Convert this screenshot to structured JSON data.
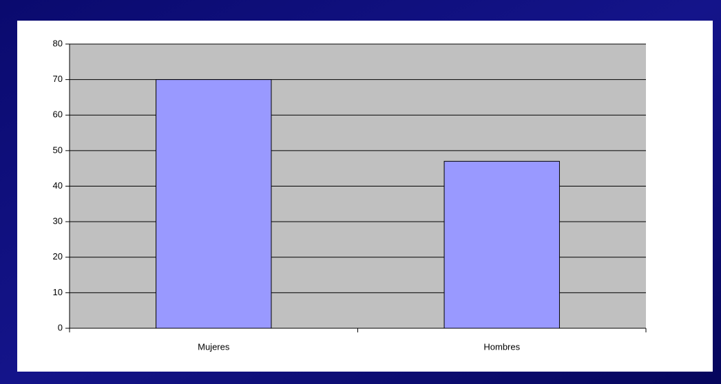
{
  "chart_data": {
    "type": "bar",
    "categories": [
      "Mujeres",
      "Hombres"
    ],
    "values": [
      70,
      47
    ],
    "color": "#9999ff",
    "ylim": [
      0,
      80
    ],
    "yticks": [
      0,
      10,
      20,
      30,
      40,
      50,
      60,
      70,
      80
    ],
    "grid": true
  }
}
